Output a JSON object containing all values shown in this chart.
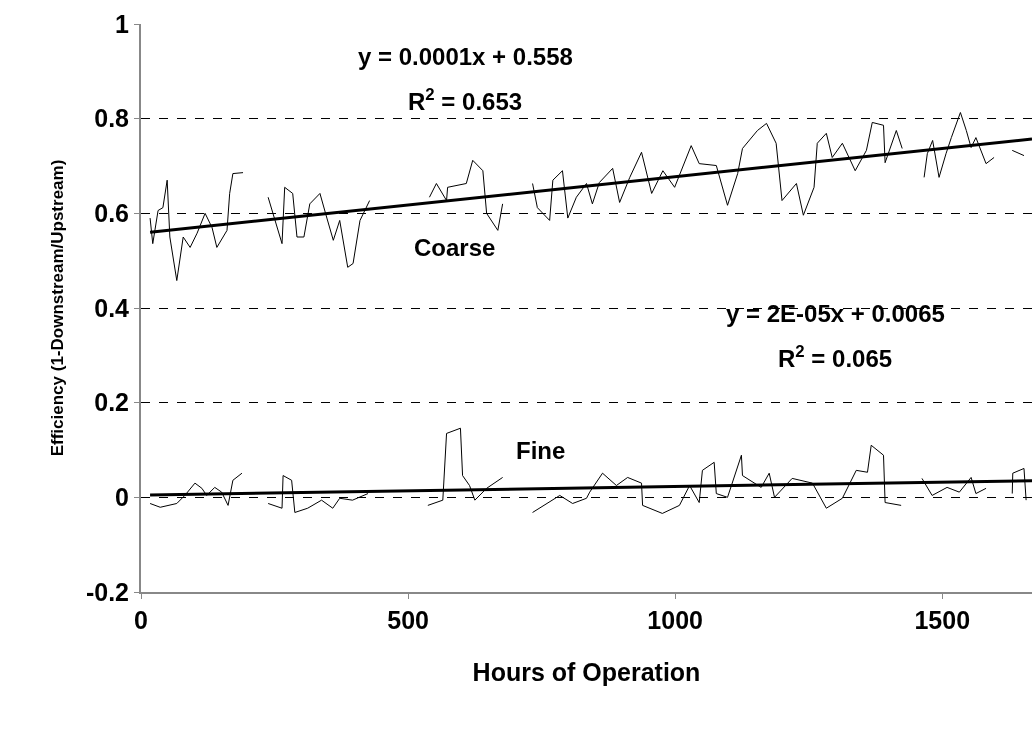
{
  "chart_data": {
    "type": "line",
    "xlabel": "Hours of Operation",
    "ylabel": "Efficiency (1-Downstream/Upstream)",
    "xlim": [
      0,
      1668
    ],
    "xticks": [
      0,
      500,
      1000,
      1500
    ],
    "ylim": [
      -0.2,
      1
    ],
    "yticks": [
      -0.2,
      0,
      0.2,
      0.4,
      0.6,
      0.8,
      1
    ],
    "grid": "y",
    "marker": "none",
    "series": [
      {
        "color": "#000000",
        "line_style": "solid",
        "x": [
          17,
          22,
          32,
          41,
          49,
          54,
          67,
          79,
          92,
          105,
          120,
          133,
          142,
          161,
          166,
          172,
          191,
          215,
          238,
          247,
          264,
          269,
          284,
          292,
          305,
          316,
          335,
          348,
          360,
          372,
          387,
          397,
          410,
          428,
          485,
          540,
          553,
          572,
          574,
          609,
          621,
          640,
          647,
          668,
          677,
          705,
          733,
          742,
          765,
          771,
          789,
          799,
          815,
          834,
          845,
          858,
          883,
          896,
          915,
          937,
          956,
          977,
          999,
          1030,
          1045,
          1077,
          1098,
          1117,
          1126,
          1154,
          1171,
          1189,
          1200,
          1227,
          1240,
          1260,
          1266,
          1283,
          1294,
          1313,
          1337,
          1358,
          1369,
          1390,
          1393,
          1414,
          1425,
          1445,
          1466,
          1472,
          1482,
          1494,
          1507,
          1517,
          1534,
          1545,
          1554,
          1563,
          1582,
          1597,
          1615,
          1631,
          1653
        ],
        "values": [
          0.59,
          0.536,
          0.606,
          0.612,
          0.67,
          0.55,
          0.458,
          0.55,
          0.528,
          0.558,
          0.6,
          0.57,
          0.528,
          0.564,
          0.642,
          0.684,
          0.686,
          null,
          0.634,
          0.6,
          0.536,
          0.655,
          0.642,
          0.55,
          0.55,
          0.62,
          0.642,
          0.59,
          0.543,
          0.585,
          0.486,
          0.494,
          0.585,
          0.627,
          null,
          0.634,
          0.663,
          0.627,
          0.655,
          0.663,
          0.712,
          0.69,
          0.6,
          0.564,
          0.62,
          null,
          0.663,
          0.612,
          0.585,
          0.67,
          0.69,
          0.59,
          0.634,
          0.663,
          0.62,
          0.665,
          0.695,
          0.623,
          0.676,
          0.729,
          0.642,
          0.69,
          0.655,
          0.743,
          0.705,
          0.701,
          0.617,
          0.684,
          0.737,
          0.775,
          0.79,
          0.748,
          0.627,
          0.663,
          0.596,
          0.655,
          0.748,
          0.769,
          0.718,
          0.748,
          0.69,
          0.733,
          0.792,
          0.786,
          0.707,
          0.775,
          0.737,
          null,
          0.676,
          0.726,
          0.754,
          0.676,
          0.726,
          0.76,
          0.813,
          0.775,
          0.739,
          0.76,
          0.705,
          0.718,
          null,
          0.733,
          0.722
        ]
      },
      {
        "color": "#000000",
        "line_style": "solid",
        "x": [
          17,
          36,
          67,
          82,
          101,
          114,
          123,
          138,
          151,
          163,
          172,
          189,
          215,
          238,
          264,
          266,
          282,
          288,
          312,
          338,
          359,
          372,
          396,
          425,
          480,
          537,
          565,
          572,
          598,
          602,
          615,
          625,
          647,
          677,
          705,
          733,
          784,
          808,
          834,
          840,
          864,
          890,
          911,
          937,
          939,
          976,
          1008,
          1027,
          1045,
          1051,
          1073,
          1077,
          1098,
          1124,
          1126,
          1161,
          1176,
          1186,
          1219,
          1257,
          1283,
          1313,
          1339,
          1360,
          1367,
          1390,
          1393,
          1423,
          1442,
          1462,
          1481,
          1509,
          1532,
          1554,
          1563,
          1582,
          1605,
          1631,
          1632,
          1653,
          1657
        ],
        "values": [
          -0.013,
          -0.021,
          -0.013,
          0.004,
          0.03,
          0.019,
          0.004,
          0.021,
          0.011,
          -0.017,
          0.036,
          0.051,
          null,
          -0.013,
          -0.023,
          0.046,
          0.036,
          -0.032,
          -0.023,
          -0.006,
          -0.023,
          -0.002,
          -0.006,
          0.008,
          null,
          -0.017,
          -0.006,
          0.135,
          0.146,
          0.046,
          0.025,
          -0.006,
          0.019,
          0.042,
          null,
          -0.032,
          0.004,
          -0.013,
          -0.002,
          0.011,
          0.051,
          0.025,
          0.042,
          0.03,
          -0.017,
          -0.034,
          -0.017,
          0.025,
          -0.011,
          0.057,
          0.074,
          0.008,
          0,
          0.089,
          0.046,
          0.021,
          0.051,
          0,
          0.04,
          0.03,
          -0.023,
          -0.002,
          0.057,
          0.053,
          0.11,
          0.089,
          -0.011,
          -0.017,
          null,
          0.04,
          0.004,
          0.021,
          0.011,
          0.042,
          0.008,
          0.019,
          null,
          0.008,
          0.051,
          0.061,
          -0.006
        ]
      },
      {
        "type": "line",
        "color": "#000000",
        "line_style": "solid",
        "x": [
          17,
          1668
        ],
        "values": [
          0.56,
          0.757
        ]
      },
      {
        "type": "line",
        "color": "#000000",
        "line_style": "solid",
        "x": [
          17,
          1668
        ],
        "values": [
          0.005,
          0.035
        ]
      }
    ],
    "annotations": [
      "y = 0.0001x + 0.558",
      "R$^{2}$ = 0.653",
      "Coarse",
      "y = 2E-05x + 0.0065",
      "R$^{2}$ = 0.065",
      "Fine"
    ]
  }
}
